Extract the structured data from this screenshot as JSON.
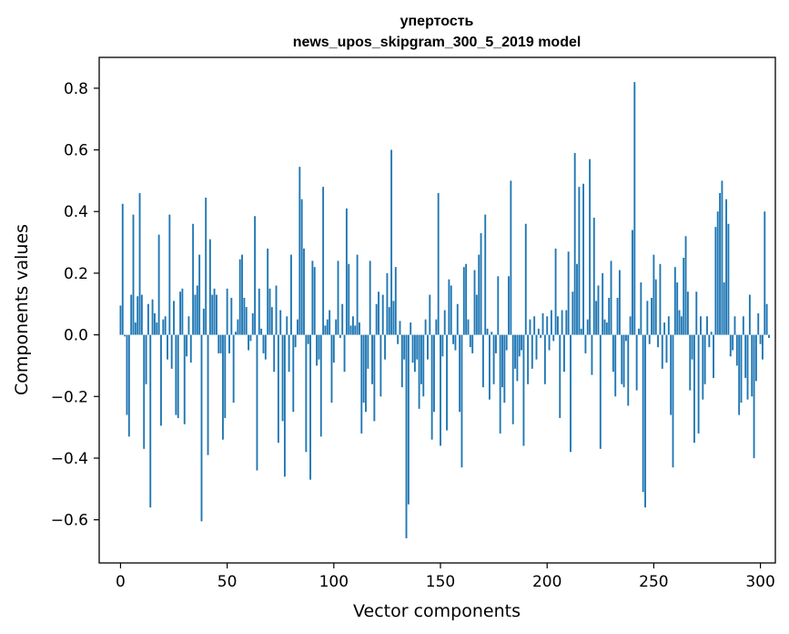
{
  "chart_data": {
    "type": "bar",
    "title_line1": "упертость",
    "title_line2": "news_upos_skipgram_300_5_2019 model",
    "xlabel": "Vector components",
    "ylabel": "Components values",
    "xlim": [
      -10,
      307
    ],
    "ylim": [
      -0.74,
      0.9
    ],
    "x_ticks": [
      0,
      50,
      100,
      150,
      200,
      250,
      300
    ],
    "x_tick_labels": [
      "0",
      "50",
      "100",
      "150",
      "200",
      "250",
      "300"
    ],
    "y_ticks": [
      -0.6,
      -0.4,
      -0.2,
      0.0,
      0.2,
      0.4,
      0.6,
      0.8
    ],
    "y_tick_labels": [
      "−0.6",
      "−0.4",
      "−0.2",
      "0.0",
      "0.2",
      "0.4",
      "0.6",
      "0.8"
    ],
    "bar_color": "#1f77b4",
    "grid": false,
    "values": [
      0.095,
      0.425,
      -0.005,
      -0.26,
      -0.33,
      0.13,
      0.39,
      0.04,
      0.125,
      0.46,
      0.13,
      -0.37,
      -0.16,
      0.1,
      -0.56,
      0.115,
      0.07,
      0.04,
      0.325,
      -0.295,
      0.05,
      0.06,
      -0.08,
      0.39,
      -0.11,
      0.11,
      -0.26,
      -0.27,
      0.14,
      0.15,
      -0.29,
      -0.07,
      0.06,
      -0.09,
      0.36,
      0.13,
      0.16,
      0.26,
      -0.605,
      0.085,
      0.445,
      -0.39,
      0.31,
      0.13,
      0.15,
      0.13,
      -0.06,
      -0.06,
      -0.34,
      -0.27,
      0.15,
      -0.06,
      0.12,
      -0.22,
      0.01,
      0.05,
      0.245,
      0.26,
      0.12,
      0.09,
      -0.05,
      -0.02,
      0.07,
      0.385,
      -0.44,
      0.15,
      0.02,
      -0.06,
      -0.08,
      0.28,
      0.15,
      0.09,
      -0.12,
      0.16,
      -0.35,
      0.08,
      -0.28,
      -0.46,
      0.06,
      -0.12,
      0.26,
      -0.25,
      -0.04,
      0.05,
      0.545,
      0.44,
      0.28,
      -0.38,
      -0.03,
      -0.47,
      0.24,
      0.22,
      -0.1,
      -0.08,
      -0.33,
      0.48,
      0.03,
      0.05,
      0.08,
      -0.22,
      -0.09,
      0.05,
      0.24,
      -0.01,
      0.1,
      -0.12,
      0.41,
      0.23,
      0.03,
      0.06,
      0.03,
      0.26,
      0.04,
      -0.32,
      -0.22,
      -0.25,
      -0.11,
      0.24,
      -0.16,
      -0.28,
      0.1,
      0.14,
      -0.2,
      0.13,
      -0.08,
      0.2,
      0.09,
      0.6,
      0.11,
      0.22,
      -0.03,
      0.045,
      -0.17,
      -0.08,
      -0.66,
      -0.55,
      0.04,
      -0.09,
      -0.12,
      -0.08,
      -0.24,
      -0.16,
      -0.2,
      0.05,
      -0.08,
      0.13,
      -0.34,
      -0.25,
      0.05,
      0.46,
      -0.36,
      -0.07,
      0.08,
      -0.31,
      0.18,
      0.16,
      -0.03,
      -0.05,
      0.1,
      -0.25,
      -0.43,
      0.22,
      0.23,
      0.05,
      -0.04,
      -0.06,
      0.21,
      0.13,
      0.26,
      0.33,
      -0.17,
      0.39,
      0.02,
      -0.21,
      0.01,
      -0.16,
      -0.06,
      0.19,
      -0.32,
      -0.17,
      -0.22,
      -0.05,
      0.19,
      0.5,
      -0.29,
      -0.11,
      -0.15,
      -0.07,
      -0.05,
      -0.36,
      0.36,
      -0.16,
      0.05,
      -0.11,
      0.06,
      -0.08,
      0.02,
      -0.01,
      0.07,
      -0.16,
      0.06,
      -0.05,
      0.08,
      -0.02,
      0.28,
      0.06,
      -0.27,
      0.08,
      -0.12,
      0.08,
      0.27,
      -0.38,
      0.14,
      0.59,
      0.23,
      0.48,
      0.02,
      0.49,
      -0.06,
      0.05,
      0.57,
      -0.13,
      0.38,
      0.11,
      0.16,
      -0.37,
      0.2,
      0.05,
      0.04,
      0.12,
      0.24,
      -0.12,
      -0.2,
      0.12,
      0.21,
      -0.16,
      -0.17,
      -0.02,
      -0.23,
      0.06,
      0.34,
      0.82,
      -0.18,
      0.02,
      0.17,
      -0.51,
      -0.56,
      0.11,
      -0.03,
      0.12,
      0.26,
      0.18,
      -0.04,
      0.23,
      -0.11,
      0.04,
      -0.09,
      0.06,
      -0.26,
      -0.43,
      0.22,
      0.17,
      0.08,
      0.06,
      0.25,
      0.32,
      0.14,
      -0.18,
      -0.08,
      -0.35,
      0.14,
      -0.32,
      0.06,
      -0.21,
      -0.16,
      0.06,
      -0.04,
      0.01,
      -0.14,
      0.35,
      0.4,
      0.46,
      0.5,
      0.17,
      0.44,
      0.36,
      -0.07,
      -0.05,
      0.06,
      -0.1,
      -0.26,
      -0.22,
      0.06,
      -0.14,
      -0.21,
      0.13,
      -0.2,
      -0.4,
      -0.15,
      0.07,
      -0.03,
      -0.08,
      0.4,
      0.1,
      -0.01
    ],
    "values_note_removed": true
  }
}
